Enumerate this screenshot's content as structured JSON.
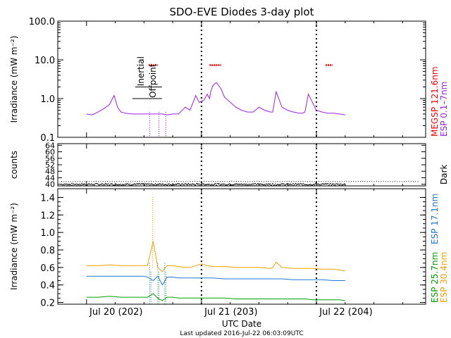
{
  "title": "SDO-EVE Diodes 3-day plot",
  "xlabel": "UTC Date",
  "footer": "Last updated 2016-Jul-22 06:03:09UTC",
  "x_ticks": [
    {
      "label": "Jul 20 (202)",
      "day": 0
    },
    {
      "label": "Jul 21 (203)",
      "day": 1
    },
    {
      "label": "Jul 22 (204)",
      "day": 2
    }
  ],
  "colors": {
    "megsp": "#ff0000",
    "esp_0_1_7": "#a020f0",
    "dark": "#000000",
    "esp_17_1": "#1f77d4",
    "esp_25_7": "#00a000",
    "esp_30_4": "#f0a000"
  },
  "chart_data": [
    {
      "type": "line",
      "panel": "top",
      "ylabel": "Irradiance (mW m⁻²)",
      "yscale": "log",
      "ylim": [
        0.1,
        100
      ],
      "y_ticks": [
        "0.1",
        "1.0",
        "10.0",
        "100.0"
      ],
      "annotations": [
        "Inertial",
        "Offpoint"
      ],
      "series": [
        {
          "name": "MEGSP 121.6nm",
          "color": "#ff0000",
          "segments": [
            [
              [
                0.54,
                7.3
              ],
              [
                0.62,
                7.3
              ]
            ],
            [
              [
                1.07,
                7.3
              ],
              [
                1.17,
                7.3
              ]
            ],
            [
              [
                2.08,
                7.3
              ],
              [
                2.14,
                7.3
              ]
            ]
          ]
        },
        {
          "name": "ESP 0.1–7nm",
          "color": "#a020f0",
          "x": [
            0.0,
            0.05,
            0.1,
            0.15,
            0.2,
            0.24,
            0.27,
            0.3,
            0.34,
            0.4,
            0.45,
            0.5,
            0.54,
            0.58,
            0.62,
            0.66,
            0.7,
            0.75,
            0.8,
            0.86,
            0.9,
            0.95,
            0.98,
            1.02,
            1.05,
            1.07,
            1.08,
            1.1,
            1.13,
            1.17,
            1.2,
            1.25,
            1.3,
            1.35,
            1.4,
            1.45,
            1.5,
            1.55,
            1.6,
            1.62,
            1.65,
            1.7,
            1.75,
            1.8,
            1.85,
            1.88,
            1.9,
            1.93,
            2.0,
            2.05,
            2.1,
            2.15,
            2.2,
            2.25
          ],
          "values": [
            0.4,
            0.38,
            0.45,
            0.55,
            0.7,
            1.2,
            0.6,
            0.45,
            0.42,
            0.4,
            0.4,
            0.4,
            0.4,
            0.4,
            0.4,
            0.4,
            0.38,
            0.4,
            0.4,
            0.6,
            0.5,
            1.2,
            0.8,
            0.9,
            1.3,
            1.0,
            1.5,
            2.2,
            2.6,
            1.8,
            1.1,
            0.8,
            0.6,
            0.5,
            0.45,
            0.45,
            0.6,
            0.5,
            0.45,
            0.45,
            1.5,
            0.6,
            0.5,
            0.45,
            0.42,
            0.42,
            0.45,
            1.3,
            0.5,
            0.45,
            0.42,
            0.42,
            0.4,
            0.38
          ]
        }
      ]
    },
    {
      "type": "scatter",
      "panel": "middle",
      "ylabel": "counts",
      "ylim": [
        39,
        65
      ],
      "y_ticks": [
        "40",
        "44",
        "48",
        "52",
        "56",
        "60",
        "64"
      ],
      "series": [
        {
          "name": "Dark",
          "color": "#000000",
          "level": 40
        }
      ]
    },
    {
      "type": "line",
      "panel": "bottom",
      "ylabel": "Irradiance (mW m⁻²)",
      "ylim": [
        0.18,
        1.5
      ],
      "y_ticks": [
        "0.2",
        "0.4",
        "0.6",
        "0.8",
        "1.0",
        "1.2",
        "1.4"
      ],
      "x": [
        0.0,
        0.1,
        0.2,
        0.3,
        0.4,
        0.5,
        0.53,
        0.58,
        0.62,
        0.66,
        0.7,
        0.75,
        0.8,
        0.86,
        0.9,
        0.95,
        1.0,
        1.05,
        1.1,
        1.2,
        1.3,
        1.4,
        1.5,
        1.6,
        1.62,
        1.65,
        1.7,
        1.8,
        1.9,
        1.97,
        2.05,
        2.15,
        2.2,
        2.25
      ],
      "series": [
        {
          "name": "ESP 30.4nm",
          "color": "#f0a000",
          "values": [
            0.62,
            0.62,
            0.63,
            0.62,
            0.62,
            0.62,
            0.62,
            0.9,
            0.6,
            0.55,
            0.62,
            0.62,
            0.61,
            0.6,
            0.6,
            0.62,
            0.64,
            0.62,
            0.61,
            0.61,
            0.6,
            0.6,
            0.6,
            0.59,
            0.6,
            0.66,
            0.6,
            0.59,
            0.59,
            0.59,
            0.58,
            0.58,
            0.57,
            0.56
          ]
        },
        {
          "name": "ESP 17.1nm",
          "color": "#1f77d4",
          "values": [
            0.5,
            0.5,
            0.5,
            0.5,
            0.5,
            0.5,
            0.49,
            0.45,
            0.5,
            0.4,
            0.49,
            0.49,
            0.48,
            0.48,
            0.48,
            0.48,
            0.48,
            0.48,
            0.48,
            0.47,
            0.47,
            0.47,
            0.47,
            0.47,
            0.47,
            0.47,
            0.47,
            0.46,
            0.46,
            0.46,
            0.46,
            0.45,
            0.45,
            0.45
          ]
        },
        {
          "name": "ESP 25.7nm",
          "color": "#00a000",
          "values": [
            0.26,
            0.26,
            0.27,
            0.26,
            0.26,
            0.26,
            0.26,
            0.3,
            0.25,
            0.22,
            0.26,
            0.26,
            0.25,
            0.25,
            0.25,
            0.25,
            0.25,
            0.25,
            0.25,
            0.25,
            0.24,
            0.24,
            0.24,
            0.24,
            0.24,
            0.24,
            0.24,
            0.24,
            0.24,
            0.23,
            0.23,
            0.23,
            0.23,
            0.22
          ]
        }
      ]
    }
  ]
}
